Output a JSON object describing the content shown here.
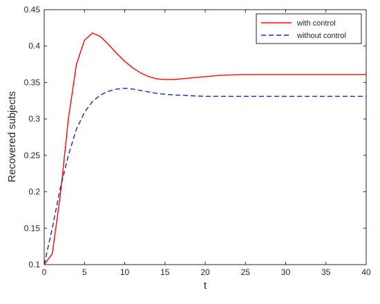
{
  "chart_data": {
    "type": "line",
    "xlabel": "t",
    "ylabel": "Recovered subjects",
    "xlim": [
      0,
      40
    ],
    "ylim": [
      0.1,
      0.45
    ],
    "xticks": [
      0,
      5,
      10,
      15,
      20,
      25,
      30,
      35,
      40
    ],
    "xtick_labels": [
      "0",
      "5",
      "10",
      "15",
      "20",
      "25",
      "30",
      "35",
      "40"
    ],
    "yticks": [
      0.1,
      0.15,
      0.2,
      0.25,
      0.3,
      0.35,
      0.4,
      0.45
    ],
    "ytick_labels": [
      "0.1",
      "0.15",
      "0.2",
      "0.25",
      "0.3",
      "0.35",
      "0.4",
      "0.45"
    ],
    "grid": false,
    "legend_position": "top-right",
    "series": [
      {
        "name": "with control",
        "color": "#ff0000",
        "style": "solid",
        "x": [
          0,
          1,
          2,
          3,
          4,
          5,
          6,
          7,
          8,
          9,
          10,
          11,
          12,
          13,
          14,
          15,
          16,
          18,
          20,
          22,
          25,
          30,
          35,
          40
        ],
        "y": [
          0.1,
          0.115,
          0.195,
          0.3,
          0.375,
          0.408,
          0.418,
          0.413,
          0.402,
          0.39,
          0.379,
          0.37,
          0.363,
          0.358,
          0.355,
          0.354,
          0.354,
          0.356,
          0.358,
          0.36,
          0.361,
          0.361,
          0.361,
          0.361
        ]
      },
      {
        "name": "without control",
        "color": "#1f1fbf",
        "style": "dashed",
        "x": [
          0,
          1,
          2,
          3,
          4,
          5,
          6,
          7,
          8,
          9,
          10,
          11,
          12,
          13,
          14,
          15,
          16,
          18,
          20,
          25,
          30,
          35,
          40
        ],
        "y": [
          0.1,
          0.15,
          0.205,
          0.25,
          0.286,
          0.309,
          0.324,
          0.333,
          0.338,
          0.341,
          0.342,
          0.341,
          0.339,
          0.337,
          0.335,
          0.334,
          0.333,
          0.332,
          0.331,
          0.331,
          0.331,
          0.331,
          0.331
        ]
      }
    ]
  }
}
